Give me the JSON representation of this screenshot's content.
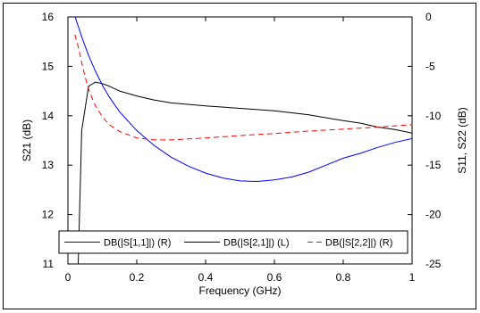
{
  "chart_data": {
    "type": "line",
    "title": "",
    "xlabel": "Frequency (GHz)",
    "ylabel_left": "S21 (dB)",
    "ylabel_right": "S11, S22 (dB)",
    "xlim": [
      0,
      1
    ],
    "ylim_left": [
      11,
      16
    ],
    "ylim_right": [
      -25,
      0
    ],
    "x_ticks": [
      "0",
      "0.2",
      "0.4",
      "0.6",
      "0.8",
      "1"
    ],
    "y_ticks_left": [
      "11",
      "12",
      "13",
      "14",
      "15",
      "16"
    ],
    "y_ticks_right": [
      "-25",
      "-20",
      "-15",
      "-10",
      "-5",
      "0"
    ],
    "grid": false,
    "legend_position": "bottom",
    "series": [
      {
        "name": "DB(|S[1,1]|) (R)",
        "axis": "right",
        "color": "#0000ff",
        "dash": "solid",
        "x": [
          0.02,
          0.04,
          0.06,
          0.08,
          0.1,
          0.12,
          0.15,
          0.2,
          0.25,
          0.3,
          0.35,
          0.4,
          0.45,
          0.5,
          0.55,
          0.6,
          0.65,
          0.7,
          0.75,
          0.8,
          0.85,
          0.9,
          0.95,
          1.0
        ],
        "y": [
          0.1,
          -2.0,
          -3.9,
          -5.5,
          -6.9,
          -8.1,
          -9.6,
          -11.5,
          -13.0,
          -14.2,
          -15.1,
          -15.8,
          -16.3,
          -16.6,
          -16.65,
          -16.5,
          -16.2,
          -15.7,
          -15.0,
          -14.3,
          -13.8,
          -13.2,
          -12.7,
          -12.3
        ]
      },
      {
        "name": "DB(|S[2,1]|) (L)",
        "axis": "left",
        "color": "#000000",
        "dash": "solid",
        "x": [
          0.03,
          0.04,
          0.06,
          0.08,
          0.1,
          0.12,
          0.15,
          0.2,
          0.25,
          0.3,
          0.4,
          0.5,
          0.6,
          0.7,
          0.8,
          0.85,
          0.9,
          0.95,
          1.0
        ],
        "y": [
          11.0,
          13.7,
          14.6,
          14.68,
          14.65,
          14.6,
          14.5,
          14.4,
          14.32,
          14.26,
          14.2,
          14.15,
          14.1,
          14.02,
          13.9,
          13.85,
          13.77,
          13.72,
          13.65
        ]
      },
      {
        "name": "DB(|S[2,2]|) (R)",
        "axis": "right",
        "color": "#ff0000",
        "dash": "dashed",
        "x": [
          0.02,
          0.03,
          0.04,
          0.05,
          0.06,
          0.07,
          0.08,
          0.1,
          0.12,
          0.15,
          0.2,
          0.25,
          0.3,
          0.4,
          0.5,
          0.6,
          0.7,
          0.8,
          0.9,
          1.0
        ],
        "y": [
          -1.8,
          -3.0,
          -4.6,
          -6.1,
          -7.3,
          -8.2,
          -9.0,
          -10.1,
          -10.9,
          -11.6,
          -12.25,
          -12.45,
          -12.45,
          -12.25,
          -12.0,
          -11.8,
          -11.55,
          -11.35,
          -11.15,
          -10.9
        ]
      }
    ]
  }
}
